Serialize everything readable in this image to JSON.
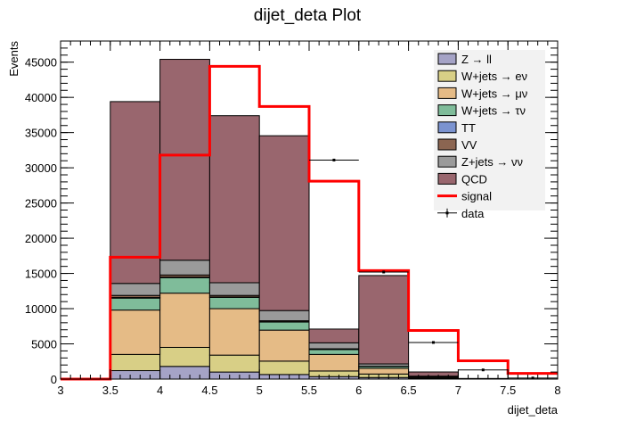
{
  "chart_data": {
    "type": "bar",
    "stacked": true,
    "title": "dijet_deta Plot",
    "xlabel": "dijet_deta",
    "ylabel": "Events",
    "xlim": [
      3,
      8
    ],
    "ylim": [
      0,
      48000
    ],
    "x_ticks": [
      3,
      3.5,
      4,
      4.5,
      5,
      5.5,
      6,
      6.5,
      7,
      7.5,
      8
    ],
    "x_tick_labels": [
      "3",
      "3.5",
      "4",
      "4.5",
      "5",
      "5.5",
      "6",
      "6.5",
      "7",
      "7.5",
      "8"
    ],
    "y_ticks": [
      0,
      5000,
      10000,
      15000,
      20000,
      25000,
      30000,
      35000,
      40000,
      45000
    ],
    "y_tick_labels": [
      "0",
      "5000",
      "10000",
      "15000",
      "20000",
      "25000",
      "30000",
      "35000",
      "40000",
      "45000"
    ],
    "bin_edges": [
      3,
      3.5,
      4,
      4.5,
      5,
      5.5,
      6,
      6.5,
      7,
      7.5,
      8
    ],
    "legend_position": "top-right",
    "series": [
      {
        "name": "Z → ll",
        "color": "#a5a3c6",
        "values": [
          0,
          1200,
          1800,
          1000,
          650,
          350,
          220,
          50,
          10,
          0
        ]
      },
      {
        "name": "W+jets → eν",
        "color": "#d8cf86",
        "values": [
          0,
          2300,
          2700,
          2400,
          1900,
          800,
          500,
          90,
          20,
          0
        ]
      },
      {
        "name": "W+jets → μν",
        "color": "#e5bb86",
        "values": [
          0,
          6300,
          7700,
          6600,
          4400,
          2350,
          800,
          140,
          30,
          0
        ]
      },
      {
        "name": "W+jets → τν",
        "color": "#7fbc9a",
        "values": [
          0,
          1700,
          2200,
          1600,
          1150,
          700,
          250,
          60,
          10,
          0
        ]
      },
      {
        "name": "TT",
        "color": "#7b93d0",
        "values": [
          0,
          80,
          80,
          60,
          40,
          20,
          10,
          0,
          0,
          0
        ]
      },
      {
        "name": "VV",
        "color": "#8b6551",
        "values": [
          0,
          300,
          300,
          220,
          140,
          80,
          40,
          10,
          0,
          0
        ]
      },
      {
        "name": "Z+jets → νν",
        "color": "#9a9a9a",
        "values": [
          0,
          1700,
          2100,
          1800,
          1450,
          850,
          330,
          60,
          10,
          0
        ]
      },
      {
        "name": "QCD",
        "color": "#99666e",
        "values": [
          0,
          25820,
          28520,
          23720,
          24820,
          1950,
          12550,
          600,
          0,
          0
        ]
      }
    ],
    "signal": {
      "name": "signal",
      "color": "#ff0000",
      "values": [
        0,
        17300,
        31800,
        44400,
        38700,
        28100,
        15400,
        6900,
        2600,
        800
      ]
    },
    "data": {
      "name": "data",
      "color": "#000000",
      "x": [
        5.75,
        6.25,
        6.75,
        7.25,
        7.75
      ],
      "y": [
        31100,
        15200,
        5200,
        1300,
        150
      ]
    }
  }
}
